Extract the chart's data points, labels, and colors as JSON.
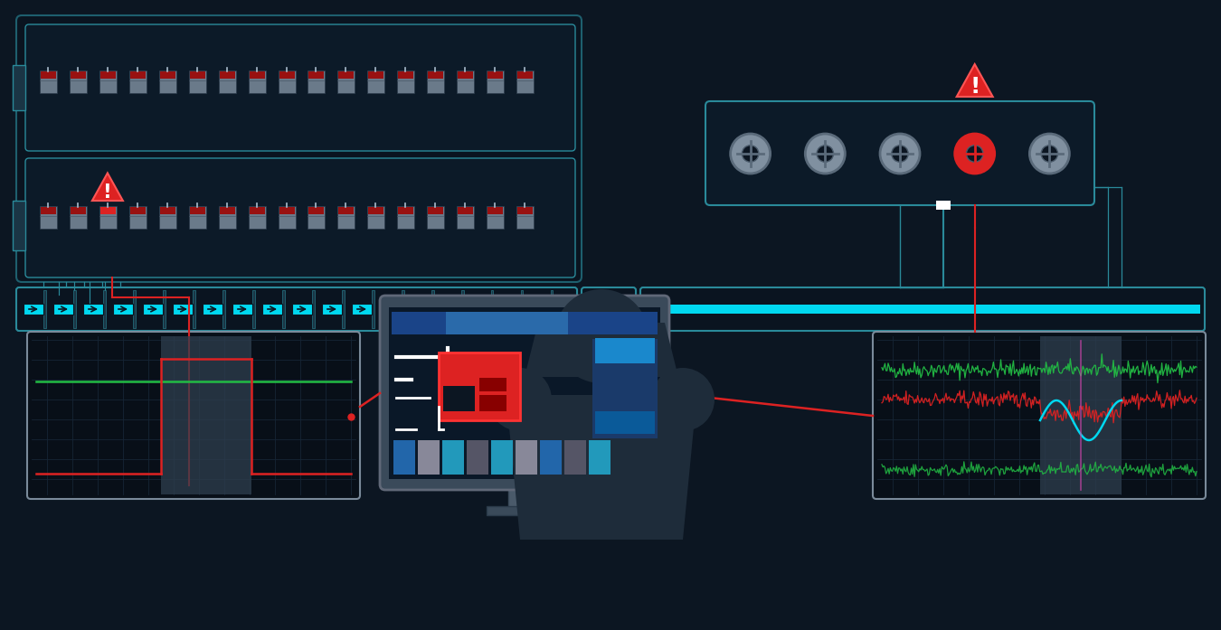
{
  "bg_color": "#0c1622",
  "cyan": "#00d8f0",
  "teal_border": "#1e5f6e",
  "teal_line": "#2a8a9a",
  "red_bright": "#dd2222",
  "red_warn": "#cc1111",
  "gray_body": "#7a8a9a",
  "gray_light": "#9aaabb",
  "gray_dark": "#3a4a5a",
  "green": "#22bb44",
  "green2": "#33cc55",
  "white": "#ffffff",
  "panel_bg": "#0a1420",
  "sub_panel_bg": "#0c1a28",
  "chart_bg": "#080f18",
  "monitor_frame": "#3a4a5a",
  "silhouette": "#1e2c3a",
  "relay_red_top": "#991111",
  "relay_red_highlight": "#dd2222",
  "relay_gray": "#6a7a8a",
  "circ_gray": "#8090a0",
  "circ_ring": "#5a6a7a",
  "blue_screen": "#1a4a8a",
  "cyan_screen": "#0088bb",
  "gray_overlay": "#2a3a4a"
}
